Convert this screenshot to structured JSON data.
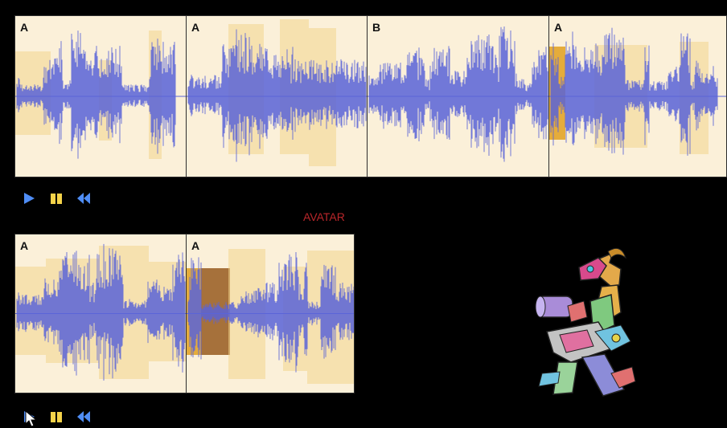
{
  "top_track": {
    "segments": [
      {
        "label": "A"
      },
      {
        "label": "A"
      },
      {
        "label": "B"
      },
      {
        "label": "A"
      }
    ]
  },
  "bottom_track": {
    "segments": [
      {
        "label": "A"
      },
      {
        "label": "A"
      }
    ]
  },
  "avatar_title": "AVATAR",
  "icons": {
    "play": "play-icon",
    "pause": "pause-icon",
    "rewind": "rewind-icon",
    "cursor": "mouse-pointer-icon"
  },
  "colors": {
    "waveform": "#5a64d8",
    "track_bg": "#fbf0d9",
    "highlight": "#f2d68c",
    "active_highlight": "#e1a01e",
    "avatar_title": "#b9262a",
    "controls": "#4f8df5"
  }
}
